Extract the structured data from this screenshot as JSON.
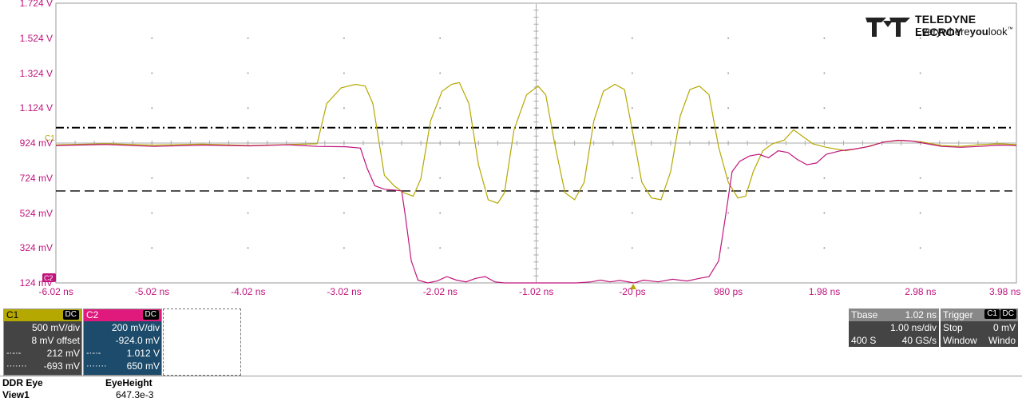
{
  "brand": {
    "line1": "TELEDYNE LECROY",
    "line2a": "Everywhere",
    "line2b": "you",
    "line2c": "look",
    "tm": "™"
  },
  "chart_data": {
    "type": "line",
    "ylabels": [
      "1.724 V",
      "1.524 V",
      "1.324 V",
      "1.124 V",
      "924 mV",
      "724 mV",
      "524 mV",
      "324 mV",
      "124 mV"
    ],
    "xlabels": [
      "-6.02 ns",
      "-5.02 ns",
      "-4.02 ns",
      "-3.02 ns",
      "-2.02 ns",
      "-1.02 ns",
      "-20 ps",
      "980 ps",
      "1.98 ns",
      "2.98 ns",
      "3.98 ns"
    ],
    "ylim_mV": [
      124,
      1724
    ],
    "xlim_ns": [
      -6.02,
      3.98
    ],
    "thresholds_mV": {
      "upper": 1012,
      "lower": 650
    },
    "series": [
      {
        "name": "C1",
        "color": "#b5a800",
        "points": [
          [
            -6.02,
            914
          ],
          [
            -5.5,
            920
          ],
          [
            -5.0,
            912
          ],
          [
            -4.5,
            918
          ],
          [
            -4.0,
            910
          ],
          [
            -3.6,
            916
          ],
          [
            -3.3,
            920
          ],
          [
            -3.2,
            1150
          ],
          [
            -3.05,
            1240
          ],
          [
            -2.9,
            1260
          ],
          [
            -2.8,
            1250
          ],
          [
            -2.72,
            1150
          ],
          [
            -2.6,
            740
          ],
          [
            -2.5,
            680
          ],
          [
            -2.4,
            640
          ],
          [
            -2.3,
            620
          ],
          [
            -2.22,
            720
          ],
          [
            -2.12,
            1050
          ],
          [
            -2.0,
            1220
          ],
          [
            -1.9,
            1260
          ],
          [
            -1.82,
            1270
          ],
          [
            -1.72,
            1150
          ],
          [
            -1.62,
            800
          ],
          [
            -1.52,
            600
          ],
          [
            -1.42,
            580
          ],
          [
            -1.35,
            640
          ],
          [
            -1.25,
            1000
          ],
          [
            -1.12,
            1200
          ],
          [
            -1.0,
            1250
          ],
          [
            -0.92,
            1200
          ],
          [
            -0.82,
            900
          ],
          [
            -0.72,
            640
          ],
          [
            -0.62,
            600
          ],
          [
            -0.52,
            700
          ],
          [
            -0.42,
            1050
          ],
          [
            -0.32,
            1220
          ],
          [
            -0.2,
            1260
          ],
          [
            -0.1,
            1230
          ],
          [
            -0.02,
            1000
          ],
          [
            0.08,
            700
          ],
          [
            0.18,
            610
          ],
          [
            0.28,
            600
          ],
          [
            0.38,
            760
          ],
          [
            0.48,
            1080
          ],
          [
            0.58,
            1230
          ],
          [
            0.68,
            1250
          ],
          [
            0.78,
            1200
          ],
          [
            0.88,
            900
          ],
          [
            0.98,
            700
          ],
          [
            1.08,
            610
          ],
          [
            1.16,
            620
          ],
          [
            1.24,
            760
          ],
          [
            1.34,
            880
          ],
          [
            1.44,
            920
          ],
          [
            1.56,
            940
          ],
          [
            1.66,
            1000
          ],
          [
            1.76,
            960
          ],
          [
            1.86,
            920
          ],
          [
            2.0,
            900
          ],
          [
            2.2,
            880
          ],
          [
            2.4,
            900
          ],
          [
            2.6,
            930
          ],
          [
            2.8,
            940
          ],
          [
            3.0,
            930
          ],
          [
            3.2,
            910
          ],
          [
            3.4,
            905
          ],
          [
            3.6,
            915
          ],
          [
            3.8,
            920
          ],
          [
            3.98,
            915
          ]
        ]
      },
      {
        "name": "C2",
        "color": "#c0157d",
        "points": [
          [
            -6.02,
            910
          ],
          [
            -5.5,
            916
          ],
          [
            -5.0,
            905
          ],
          [
            -4.5,
            912
          ],
          [
            -4.0,
            908
          ],
          [
            -3.6,
            914
          ],
          [
            -3.3,
            905
          ],
          [
            -3.0,
            903
          ],
          [
            -2.85,
            895
          ],
          [
            -2.78,
            780
          ],
          [
            -2.7,
            680
          ],
          [
            -2.6,
            660
          ],
          [
            -2.5,
            655
          ],
          [
            -2.42,
            650
          ],
          [
            -2.38,
            500
          ],
          [
            -2.32,
            250
          ],
          [
            -2.25,
            140
          ],
          [
            -2.15,
            124
          ],
          [
            -2.05,
            135
          ],
          [
            -1.95,
            160
          ],
          [
            -1.85,
            140
          ],
          [
            -1.75,
            130
          ],
          [
            -1.65,
            150
          ],
          [
            -1.55,
            160
          ],
          [
            -1.45,
            130
          ],
          [
            -1.35,
            124
          ],
          [
            -1.0,
            124
          ],
          [
            -0.6,
            124
          ],
          [
            -0.45,
            130
          ],
          [
            -0.35,
            140
          ],
          [
            -0.25,
            130
          ],
          [
            -0.15,
            138
          ],
          [
            0.0,
            124
          ],
          [
            0.1,
            140
          ],
          [
            0.25,
            130
          ],
          [
            0.4,
            145
          ],
          [
            0.55,
            135
          ],
          [
            0.68,
            150
          ],
          [
            0.78,
            160
          ],
          [
            0.88,
            250
          ],
          [
            0.95,
            500
          ],
          [
            1.02,
            760
          ],
          [
            1.1,
            820
          ],
          [
            1.2,
            850
          ],
          [
            1.3,
            860
          ],
          [
            1.4,
            840
          ],
          [
            1.5,
            880
          ],
          [
            1.6,
            870
          ],
          [
            1.7,
            830
          ],
          [
            1.8,
            800
          ],
          [
            1.9,
            810
          ],
          [
            2.0,
            860
          ],
          [
            2.15,
            880
          ],
          [
            2.3,
            890
          ],
          [
            2.45,
            905
          ],
          [
            2.6,
            930
          ],
          [
            2.75,
            940
          ],
          [
            2.9,
            935
          ],
          [
            3.05,
            920
          ],
          [
            3.2,
            905
          ],
          [
            3.4,
            900
          ],
          [
            3.6,
            905
          ],
          [
            3.8,
            912
          ],
          [
            3.98,
            910
          ]
        ]
      }
    ]
  },
  "channels": [
    {
      "name": "C1",
      "coupling": "DC",
      "vdiv": "500 mV/div",
      "offset": "8 mV offset",
      "lvl1": "212 mV",
      "lvl2": "-693 mV",
      "head_color": "#b5a800"
    },
    {
      "name": "C2",
      "coupling": "DC",
      "vdiv": "200 mV/div",
      "offset": "-924.0 mV",
      "lvl1": "1.012 V",
      "lvl2": "650 mV",
      "head_color": "#e0197d"
    }
  ],
  "timebase": {
    "label": "Tbase",
    "value": "1.02 ns",
    "tdiv": "1.00 ns/div",
    "samples": "400 S",
    "rate": "40 GS/s"
  },
  "trigger": {
    "label": "Trigger",
    "src": "C1",
    "coupling": "DC",
    "mode": "Stop",
    "level": "0 mV",
    "type": "Window",
    "type2": "Windo"
  },
  "measure": {
    "name": "DDR Eye",
    "view": "View1",
    "param": "EyeHeight",
    "value": "647.3e-3"
  },
  "markers": {
    "c1": "C1",
    "c2": "C2"
  },
  "colors": {
    "c1": "#b5a800",
    "c2": "#c0157d",
    "panel": "#444444",
    "c2panel": "#1c4b6b"
  }
}
